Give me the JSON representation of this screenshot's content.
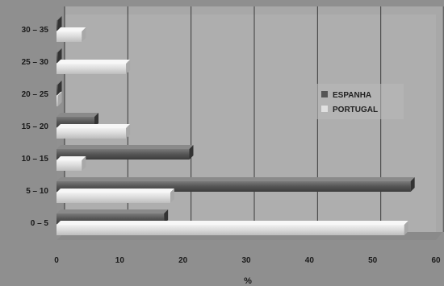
{
  "chart_data": {
    "type": "bar",
    "orientation": "horizontal",
    "categories": [
      "0 – 5",
      "5 – 10",
      "10 – 15",
      "15 – 20",
      "20 – 25",
      "25 – 30",
      "30 – 35"
    ],
    "series": [
      {
        "name": "ESPANHA",
        "values": [
          17,
          56,
          21,
          6,
          0,
          0,
          0
        ],
        "color": "#555555"
      },
      {
        "name": "PORTUGAL",
        "values": [
          55,
          18,
          4,
          11,
          0,
          11,
          4
        ],
        "color": "#d9d9d9"
      }
    ],
    "xticks": [
      "0",
      "10",
      "20",
      "30",
      "40",
      "50",
      "60"
    ],
    "xlim": [
      0,
      60
    ],
    "xlabel": "%",
    "ylabel": "",
    "title": "",
    "grid": true,
    "legend_position": "right",
    "colors": {
      "plot_background": "#a8a8a8",
      "wall_front": "#b5b5b5",
      "grid": "#3a3a3a"
    }
  }
}
